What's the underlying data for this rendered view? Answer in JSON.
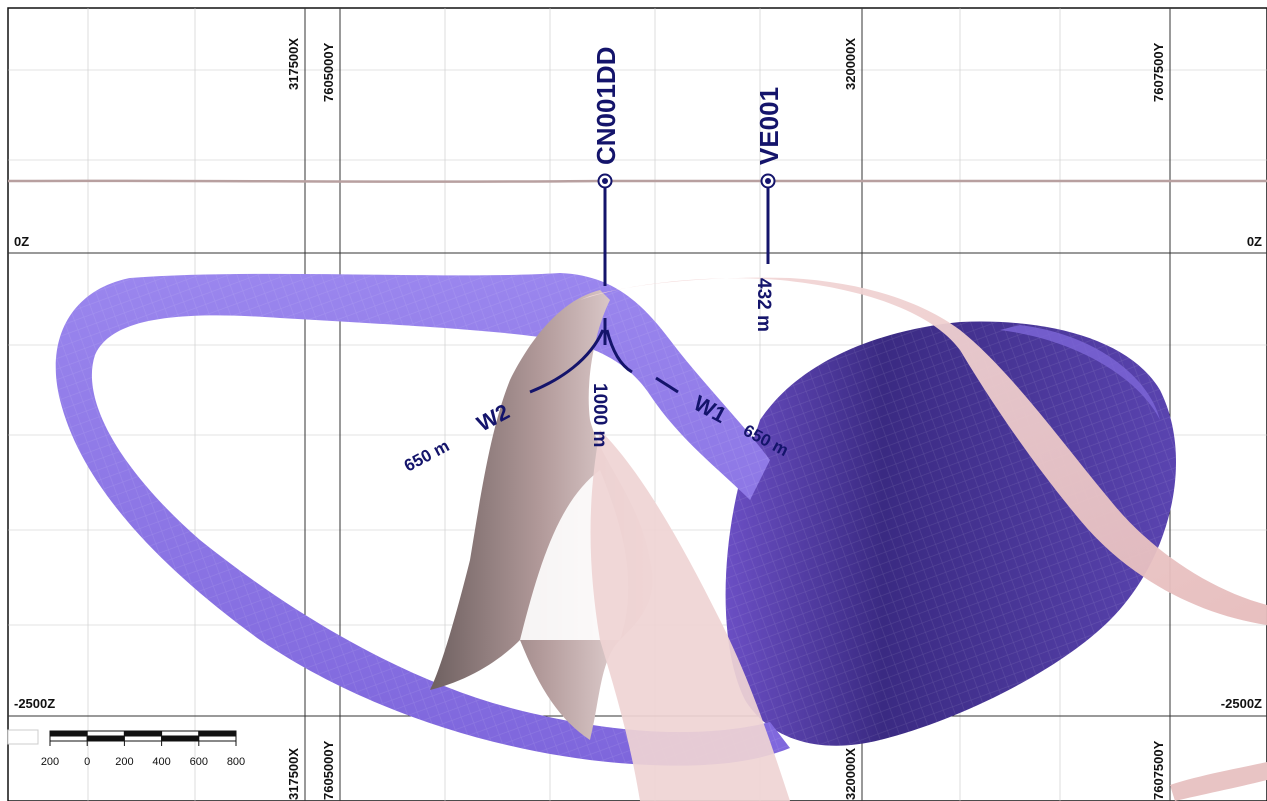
{
  "grid": {
    "easting_labels": [
      "317500X",
      "320000X"
    ],
    "northing_labels": [
      "7605000Y",
      "7607500Y"
    ],
    "elevation_labels": [
      "0Z",
      "-2500Z"
    ]
  },
  "drillholes": [
    {
      "name": "CN001DD",
      "depth_label": "1000 m"
    },
    {
      "name": "VE001",
      "depth_label": "432 m"
    }
  ],
  "wedges": [
    {
      "name": "W2",
      "depth_label": "650 m"
    },
    {
      "name": "W1",
      "depth_label": "650 m"
    }
  ],
  "scale_bar": {
    "tick_labels": [
      "200",
      "0",
      "200",
      "400",
      "600",
      "800"
    ]
  },
  "colors": {
    "hole_trace": "#14146b",
    "purple_surface": "#8a74e6",
    "purple_dark": "#2e2260",
    "pink_surface": "#ecc7c7",
    "grid_line": "#333333"
  }
}
